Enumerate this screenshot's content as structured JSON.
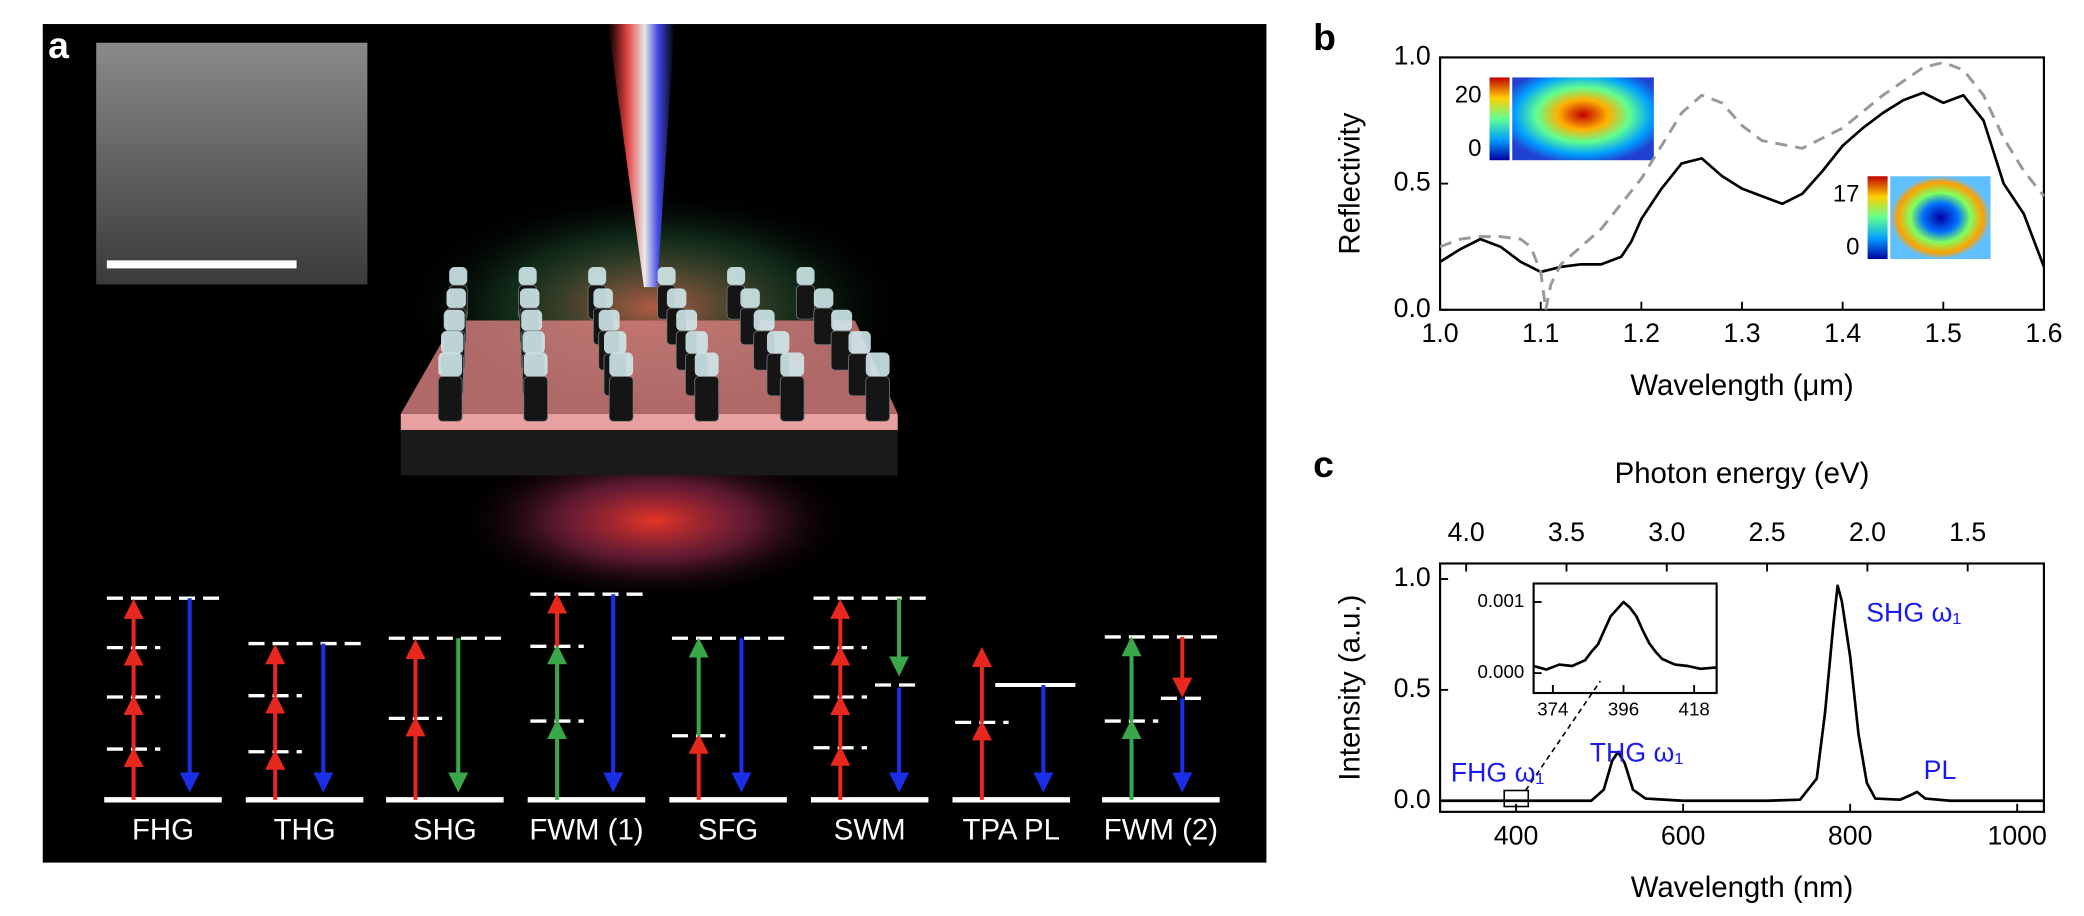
{
  "panel_labels": [
    "a",
    "b",
    "c"
  ],
  "panel_a": {
    "process_labels": [
      "FHG",
      "THG",
      "SHG",
      "FWM (1)",
      "SFG",
      "SWM",
      "TPA PL",
      "FWM (2)"
    ]
  },
  "chart_data": [
    {
      "type": "line",
      "xlabel": "Wavelength (μm)",
      "ylabel": "Reflectivity",
      "xlim": [
        1.0,
        1.6
      ],
      "xticks": [
        {
          "value": 1,
          "label": "1.0"
        },
        1.1,
        1.2,
        1.3,
        1.4,
        1.5,
        1.6
      ],
      "ylim": [
        0,
        1
      ],
      "yticks": [
        {
          "value": 0,
          "label": "0.0"
        },
        0.5,
        {
          "value": 1,
          "label": "1.0"
        }
      ],
      "series": [
        {
          "color": "#000000",
          "dash": false,
          "x": [
            1.0,
            1.02,
            1.04,
            1.06,
            1.08,
            1.1,
            1.12,
            1.14,
            1.16,
            1.18,
            1.19,
            1.2,
            1.22,
            1.24,
            1.26,
            1.28,
            1.3,
            1.32,
            1.34,
            1.36,
            1.38,
            1.4,
            1.42,
            1.44,
            1.46,
            1.48,
            1.5,
            1.52,
            1.54,
            1.56,
            1.58,
            1.6
          ],
          "values": [
            0.19,
            0.24,
            0.28,
            0.25,
            0.19,
            0.15,
            0.17,
            0.18,
            0.18,
            0.21,
            0.27,
            0.36,
            0.48,
            0.58,
            0.6,
            0.53,
            0.48,
            0.45,
            0.42,
            0.46,
            0.55,
            0.65,
            0.72,
            0.78,
            0.83,
            0.86,
            0.82,
            0.85,
            0.75,
            0.5,
            0.38,
            0.17
          ]
        },
        {
          "color": "#999999",
          "dash": true,
          "x": [
            1.0,
            1.02,
            1.04,
            1.06,
            1.08,
            1.09,
            1.1,
            1.105,
            1.11,
            1.12,
            1.16,
            1.2,
            1.22,
            1.24,
            1.26,
            1.28,
            1.3,
            1.32,
            1.36,
            1.4,
            1.44,
            1.48,
            1.5,
            1.52,
            1.54,
            1.56,
            1.58,
            1.6
          ],
          "values": [
            0.25,
            0.28,
            0.29,
            0.29,
            0.28,
            0.25,
            0.15,
            0.0,
            0.1,
            0.18,
            0.32,
            0.52,
            0.65,
            0.78,
            0.85,
            0.82,
            0.73,
            0.67,
            0.64,
            0.72,
            0.85,
            0.96,
            0.98,
            0.95,
            0.85,
            0.68,
            0.55,
            0.45
          ]
        }
      ],
      "insets": [
        {
          "cticks": [
            0,
            20
          ]
        },
        {
          "cticks": [
            0,
            17
          ]
        }
      ]
    },
    {
      "type": "line",
      "xlabel": "Wavelength (nm)",
      "ylabel": "Intensity (a.u.)",
      "x2label": "Photon energy (eV)",
      "xlim": [
        309,
        1032
      ],
      "xticks": [
        400,
        600,
        800,
        1000
      ],
      "ylim": [
        -0.05,
        1.07
      ],
      "yticks": [
        {
          "value": 0,
          "label": "0.0"
        },
        0.5,
        {
          "value": 1,
          "label": "1.0"
        }
      ],
      "x2lim": [
        4.13,
        1.12
      ],
      "x2ticks": [
        {
          "value": 4,
          "label": "4.0"
        },
        3.5,
        {
          "value": 3,
          "label": "3.0"
        },
        2.5,
        {
          "value": 2,
          "label": "2.0"
        },
        1.5
      ],
      "series": [
        {
          "color": "#000000",
          "dash": false,
          "x": [
            309,
            380,
            490,
            505,
            515,
            522,
            530,
            540,
            555,
            600,
            700,
            740,
            760,
            770,
            780,
            785,
            790,
            800,
            810,
            820,
            830,
            860,
            875,
            880,
            890,
            920,
            1000,
            1032
          ],
          "values": [
            0,
            0,
            0,
            0.05,
            0.18,
            0.22,
            0.17,
            0.05,
            0.01,
            0,
            0,
            0.005,
            0.1,
            0.4,
            0.8,
            0.97,
            0.9,
            0.65,
            0.3,
            0.08,
            0.01,
            0.005,
            0.03,
            0.04,
            0.01,
            0,
            0,
            0
          ]
        }
      ],
      "annotations": [
        "FHG ω₁",
        "THG ω₁",
        "SHG ω₁",
        "PL"
      ],
      "inset": {
        "type": "line",
        "xlim": [
          368,
          425
        ],
        "xticks": [
          374,
          396,
          418
        ],
        "ylim": [
          -0.00028,
          0.00126
        ],
        "yticks": [
          {
            "value": 0,
            "label": "0.000"
          },
          {
            "value": 0.001,
            "label": "0.001"
          }
        ],
        "series": [
          {
            "color": "#000000",
            "dash": false,
            "x": [
              368,
              372,
              376,
              380,
              384,
              386,
              388,
              390,
              392,
              394,
              396,
              398,
              400,
              402,
              404,
              406,
              408,
              412,
              416,
              420,
              425
            ],
            "values": [
              0.0001,
              5e-05,
              0.00012,
              0.0001,
              0.00018,
              0.0003,
              0.0004,
              0.0006,
              0.0008,
              0.0009,
              0.001,
              0.00092,
              0.0008,
              0.0006,
              0.00042,
              0.0003,
              0.0002,
              0.00012,
              0.0001,
              6e-05,
              8e-05
            ]
          }
        ]
      }
    }
  ]
}
